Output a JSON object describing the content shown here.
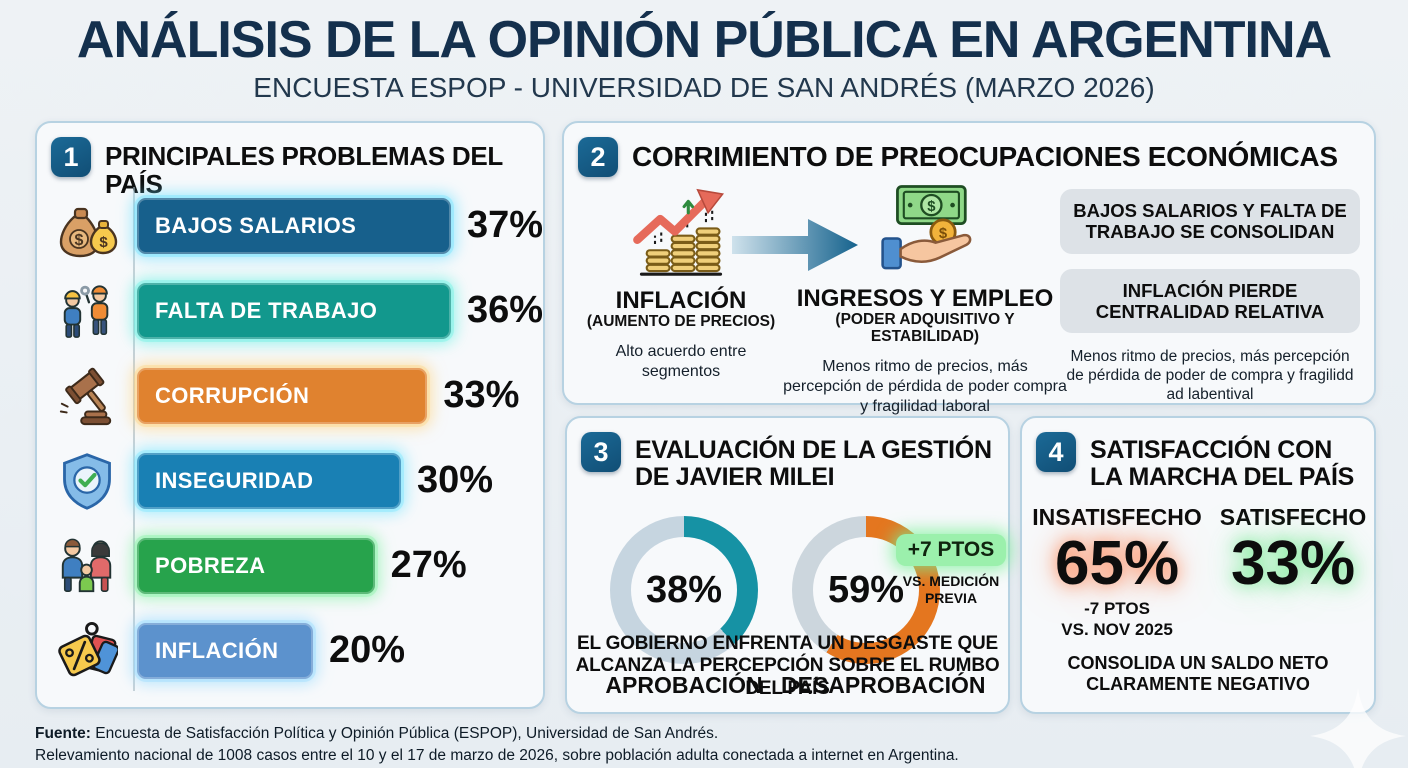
{
  "header": {
    "title": "ANÁLISIS DE LA OPINIÓN PÚBLICA EN ARGENTINA",
    "subtitle": "ENCUESTA ESPOP - UNIVERSIDAD DE SAN ANDRÉS (MARZO 2026)"
  },
  "panel1": {
    "number": "1",
    "title": "PRINCIPALES PROBLEMAS DEL PAÍS",
    "items": [
      {
        "label": "BAJOS SALARIOS",
        "value": "37%",
        "pct": 37,
        "color": "#17608c",
        "glow": "#66e0ff",
        "icon": "money-bags-icon"
      },
      {
        "label": "FALTA DE TRABAJO",
        "value": "36%",
        "pct": 36,
        "color": "#12988d",
        "glow": "#5ff0e2",
        "icon": "workers-icon"
      },
      {
        "label": "CORRUPCIÓN",
        "value": "33%",
        "pct": 33,
        "color": "#e0822f",
        "glow": "#ffd27a",
        "icon": "gavel-icon"
      },
      {
        "label": "INSEGURIDAD",
        "value": "30%",
        "pct": 30,
        "color": "#1980b4",
        "glow": "#6fe4ff",
        "icon": "shield-check-icon"
      },
      {
        "label": "POBREZA",
        "value": "27%",
        "pct": 27,
        "color": "#27a34c",
        "glow": "#7df2a0",
        "icon": "family-icon"
      },
      {
        "label": "INFLACIÓN",
        "value": "20%",
        "pct": 20,
        "color": "#5c92cd",
        "glow": "#8fd8ff",
        "icon": "price-tags-icon"
      }
    ]
  },
  "panel2": {
    "number": "2",
    "title": "CORRIMIENTO DE PREOCUPACIONES ECONÓMICAS",
    "from": {
      "title": "INFLACIÓN",
      "subtitle": "(AUMENTO DE PRECIOS)",
      "note": "Alto acuerdo entre segmentos"
    },
    "to": {
      "title": "INGRESOS Y EMPLEO",
      "subtitle": "(PODER ADQUISITIVO Y ESTABILIDAD)",
      "note": "Menos ritmo de precios, más percepción de pérdida de poder compra y fragilidad laboral"
    },
    "callouts": [
      {
        "text": "BAJOS SALARIOS Y FALTA DE TRABAJO SE CONSOLIDAN"
      },
      {
        "text": "INFLACIÓN PIERDE CENTRALIDAD RELATIVA"
      }
    ],
    "callout_note": "Menos ritmo de precios, más percepción de pérdida de poder de compra y fragilidd ad labentival"
  },
  "panel3": {
    "number": "3",
    "title": "EVALUACIÓN DE LA GESTIÓN DE JAVIER MILEI",
    "donuts": [
      {
        "value": "38%",
        "pct": 38,
        "label": "APROBACIÓN",
        "color": "#1692a4",
        "track": "#c6d5e0"
      },
      {
        "value": "59%",
        "pct": 59,
        "label": "DESAPROBACIÓN",
        "color": "#e4761f",
        "track": "#ccd6dd"
      }
    ],
    "badge": "+7 PTOS",
    "badge_note": "VS. MEDICIÓN PREVIA",
    "footnote": "EL GOBIERNO ENFRENTA UN DESGASTE QUE ALCANZA LA PERCEPCIÓN SOBRE EL RUMBO DEL PAÍS"
  },
  "panel4": {
    "number": "4",
    "title": "SATISFACCIÓN CON LA MARCHA DEL PAÍS",
    "left": {
      "label": "INSATISFECHO",
      "value": "65%",
      "delta": "-7 PTOS",
      "delta_note": "VS. NOV 2025",
      "glow": "#ff8250"
    },
    "right": {
      "label": "SATISFECHO",
      "value": "33%",
      "glow": "#6eeb8c"
    },
    "footnote": "CONSOLIDA UN SALDO NETO CLARAMENTE NEGATIVO"
  },
  "footer": {
    "source_label": "Fuente:",
    "source": " Encuesta de Satisfacción Política y Opinión Pública (ESPOP), Universidad de San Andrés.",
    "detail": "Relevamiento nacional de 1008 casos entre el 10 y el 17 de marzo de 2026, sobre población adulta conectada a internet en Argentina."
  },
  "chart_data": [
    {
      "type": "bar",
      "title": "PRINCIPALES PROBLEMAS DEL PAÍS",
      "categories": [
        "BAJOS SALARIOS",
        "FALTA DE TRABAJO",
        "CORRUPCIÓN",
        "INSEGURIDAD",
        "POBREZA",
        "INFLACIÓN"
      ],
      "values": [
        37,
        36,
        33,
        30,
        27,
        20
      ],
      "unit": "%",
      "orientation": "horizontal",
      "xlim": [
        0,
        40
      ]
    },
    {
      "type": "pie",
      "title": "EVALUACIÓN DE LA GESTIÓN DE JAVIER MILEI — APROBACIÓN",
      "slices": [
        {
          "label": "APROBACIÓN",
          "value": 38
        },
        {
          "label": "RESTO",
          "value": 62
        }
      ],
      "unit": "%"
    },
    {
      "type": "pie",
      "title": "EVALUACIÓN DE LA GESTIÓN DE JAVIER MILEI — DESAPROBACIÓN",
      "slices": [
        {
          "label": "DESAPROBACIÓN",
          "value": 59
        },
        {
          "label": "RESTO",
          "value": 41
        }
      ],
      "unit": "%",
      "annotation": "+7 PTOS VS. MEDICIÓN PREVIA"
    },
    {
      "type": "bar",
      "title": "SATISFACCIÓN CON LA MARCHA DEL PAÍS",
      "categories": [
        "INSATISFECHO",
        "SATISFECHO"
      ],
      "values": [
        65,
        33
      ],
      "unit": "%",
      "annotations": [
        "-7 PTOS VS. NOV 2025",
        ""
      ]
    }
  ]
}
